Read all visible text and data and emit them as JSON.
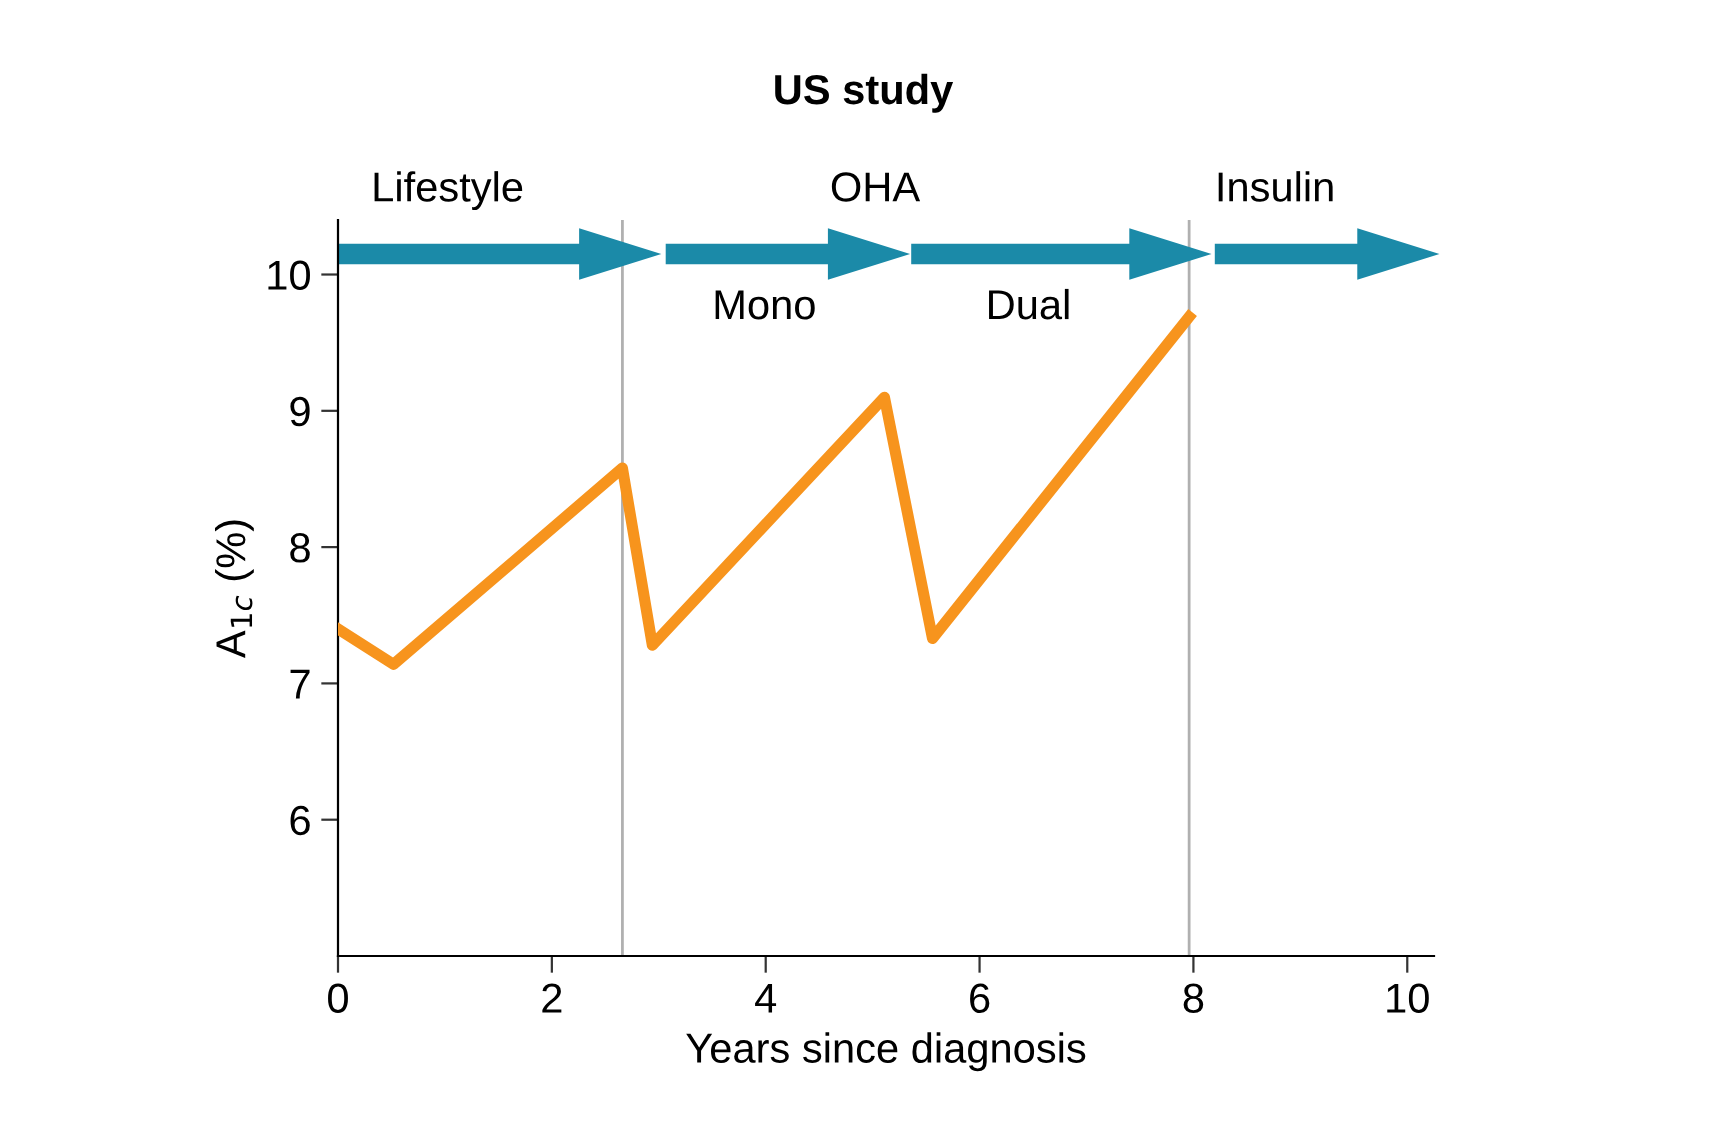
{
  "chart_data": {
    "type": "line",
    "title": "US study",
    "xlabel": "Years since diagnosis",
    "ylabel": "A$_{1c}$ (%)",
    "series": [
      {
        "color": "#f7941d",
        "x": [
          0,
          0.52,
          2.66,
          2.94,
          5.11,
          5.56,
          7.96
        ],
        "values": [
          7.4,
          7.14,
          8.58,
          7.28,
          9.1,
          7.33,
          9.69
        ]
      }
    ],
    "xlim": [
      0,
      10.25
    ],
    "ylim": [
      5,
      10.4
    ],
    "xticks": [
      0,
      2,
      4,
      6,
      8,
      10
    ],
    "yticks": [
      6,
      7,
      8,
      9,
      10
    ],
    "ref_lines": [
      {
        "axis": "x",
        "value": 2.66,
        "label": null,
        "color": "#b0b0b0"
      },
      {
        "axis": "x",
        "value": 7.96,
        "label": null,
        "color": "#b0b0b0"
      }
    ],
    "annotations": [
      "Lifestyle",
      "OHA",
      "Insulin",
      "Mono",
      "Dual"
    ],
    "grid": false,
    "line_style": "solid",
    "marker": "none"
  }
}
